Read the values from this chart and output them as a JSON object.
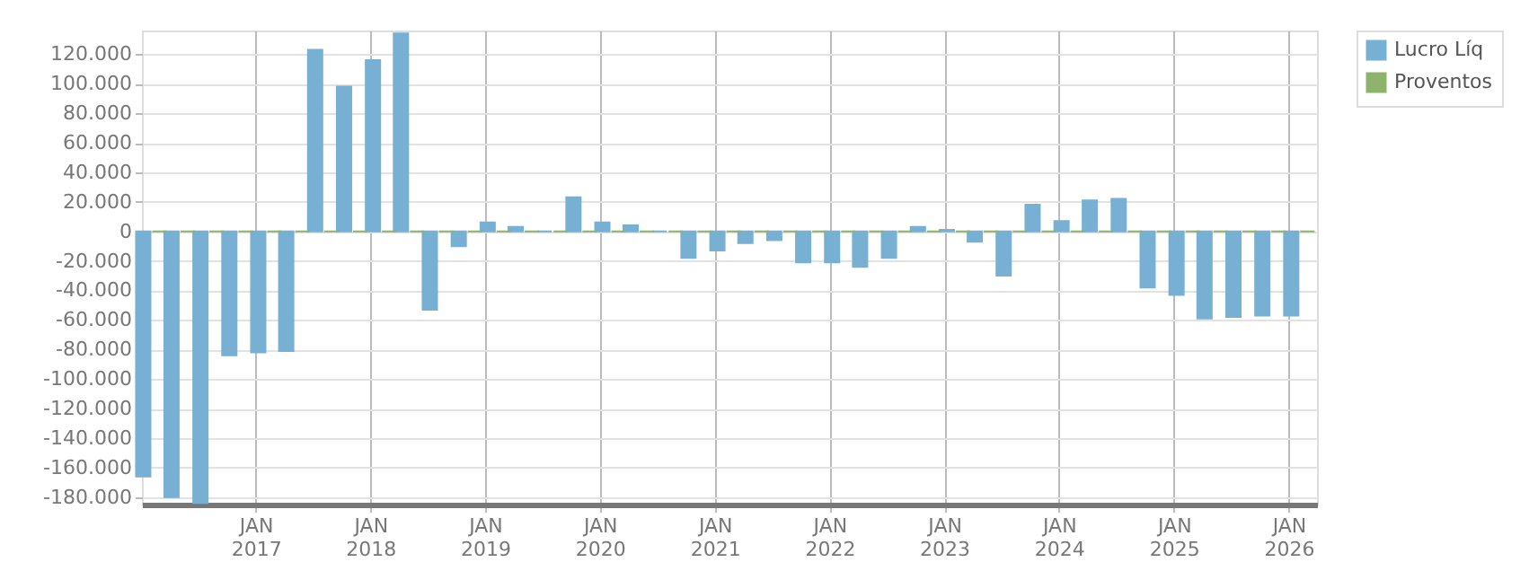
{
  "chart_data": {
    "type": "bar",
    "x": [
      "2016-02-01",
      "2016-05-01",
      "2016-08-01",
      "2016-11-01",
      "2017-02-01",
      "2017-05-01",
      "2017-08-01",
      "2017-11-01",
      "2018-02-01",
      "2018-05-01",
      "2018-08-01",
      "2018-11-01",
      "2019-02-01",
      "2019-05-01",
      "2019-08-01",
      "2019-11-01",
      "2020-02-01",
      "2020-05-01",
      "2020-08-01",
      "2020-11-01",
      "2021-02-01",
      "2021-05-01",
      "2021-08-01",
      "2021-11-01",
      "2022-02-01",
      "2022-05-01",
      "2022-08-01",
      "2022-11-01",
      "2023-02-01",
      "2023-05-01",
      "2023-08-01",
      "2023-11-01",
      "2024-02-01",
      "2024-05-01",
      "2024-08-01",
      "2024-11-01",
      "2025-02-01",
      "2025-05-01",
      "2025-08-01",
      "2025-11-01",
      "2026-02-01"
    ],
    "series": [
      {
        "name": "Lucro Líq",
        "color": "#77b0d3",
        "values": [
          -166000,
          -180000,
          -184000,
          -84000,
          -82000,
          -81000,
          123000,
          98000,
          116000,
          134000,
          -53000,
          -10000,
          6000,
          3000,
          0,
          23000,
          6000,
          4000,
          0,
          -18000,
          -13000,
          -8000,
          -6000,
          -21000,
          -21000,
          -24000,
          -18000,
          3000,
          1000,
          -7000,
          -30000,
          18000,
          7000,
          21000,
          22000,
          -38000,
          -43000,
          -59000,
          -58000,
          -57000,
          -57000
        ]
      },
      {
        "name": "Proventos",
        "color": "#8db46a",
        "values": [
          0,
          0,
          0,
          0,
          0,
          0,
          0,
          0,
          0,
          0,
          0,
          0,
          0,
          0,
          0,
          0,
          0,
          0,
          0,
          0,
          0,
          0,
          0,
          0,
          0,
          0,
          0,
          0,
          0,
          0,
          0,
          0,
          0,
          0,
          0,
          0,
          0,
          0,
          0,
          0,
          0
        ]
      }
    ],
    "xlim": [
      "2016-01-05",
      "2026-04-01"
    ],
    "xticks": [
      {
        "value": "2017-01-01",
        "label": "JAN 2017"
      },
      {
        "value": "2018-01-01",
        "label": "JAN 2018"
      },
      {
        "value": "2019-01-01",
        "label": "JAN 2019"
      },
      {
        "value": "2020-01-01",
        "label": "JAN 2020"
      },
      {
        "value": "2021-01-01",
        "label": "JAN 2021"
      },
      {
        "value": "2022-01-01",
        "label": "JAN 2022"
      },
      {
        "value": "2023-01-01",
        "label": "JAN 2023"
      },
      {
        "value": "2024-01-01",
        "label": "JAN 2024"
      },
      {
        "value": "2025-01-01",
        "label": "JAN 2025"
      },
      {
        "value": "2026-01-01",
        "label": "JAN 2026"
      }
    ],
    "ylim": [
      -185000,
      136000
    ],
    "yticks": [
      {
        "value": 120000,
        "label": "120.000"
      },
      {
        "value": 100000,
        "label": "100.000"
      },
      {
        "value": 80000,
        "label": "80.000"
      },
      {
        "value": 60000,
        "label": "60.000"
      },
      {
        "value": 40000,
        "label": "40.000"
      },
      {
        "value": 20000,
        "label": "20.000"
      },
      {
        "value": 0,
        "label": "0"
      },
      {
        "value": -20000,
        "label": "-20.000"
      },
      {
        "value": -40000,
        "label": "-40.000"
      },
      {
        "value": -60000,
        "label": "-60.000"
      },
      {
        "value": -80000,
        "label": "-80.000"
      },
      {
        "value": -100000,
        "label": "-100.000"
      },
      {
        "value": -120000,
        "label": "-120.000"
      },
      {
        "value": -140000,
        "label": "-140.000"
      },
      {
        "value": -160000,
        "label": "-160.000"
      },
      {
        "value": -180000,
        "label": "-180.000"
      }
    ],
    "grid": true,
    "legend": "top right"
  }
}
